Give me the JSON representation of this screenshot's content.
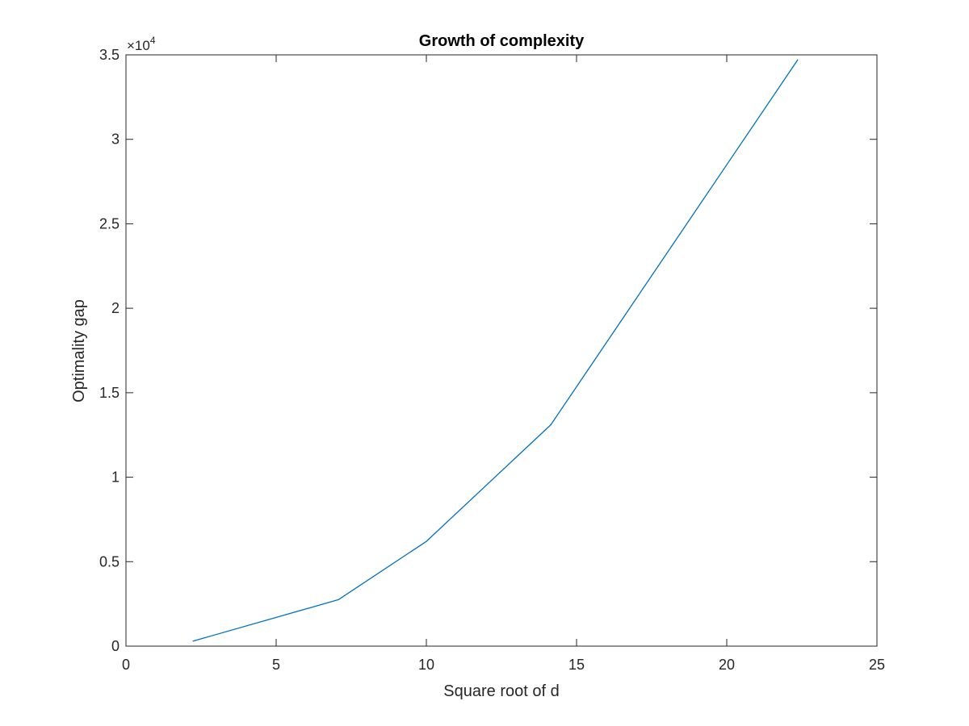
{
  "chart_data": {
    "type": "line",
    "title": "Growth of complexity",
    "xlabel": "Square root of d",
    "ylabel": "Optimality gap",
    "y_exponent_base": "×10",
    "y_exponent_power": "4",
    "xlim": [
      0,
      25
    ],
    "ylim": [
      0,
      35000
    ],
    "x_ticks": [
      0,
      5,
      10,
      15,
      20,
      25
    ],
    "x_tick_labels": [
      "0",
      "5",
      "10",
      "15",
      "20",
      "25"
    ],
    "y_ticks": [
      0,
      5000,
      10000,
      15000,
      20000,
      25000,
      30000,
      35000
    ],
    "y_tick_labels": [
      "0",
      "0.5",
      "1",
      "1.5",
      "2",
      "2.5",
      "3",
      "3.5"
    ],
    "grid": false,
    "series": [
      {
        "color": "#0072BD",
        "x": [
          2.236,
          7.071,
          10.0,
          14.142,
          22.361
        ],
        "y": [
          300,
          2750,
          6200,
          13100,
          34700
        ]
      }
    ]
  }
}
